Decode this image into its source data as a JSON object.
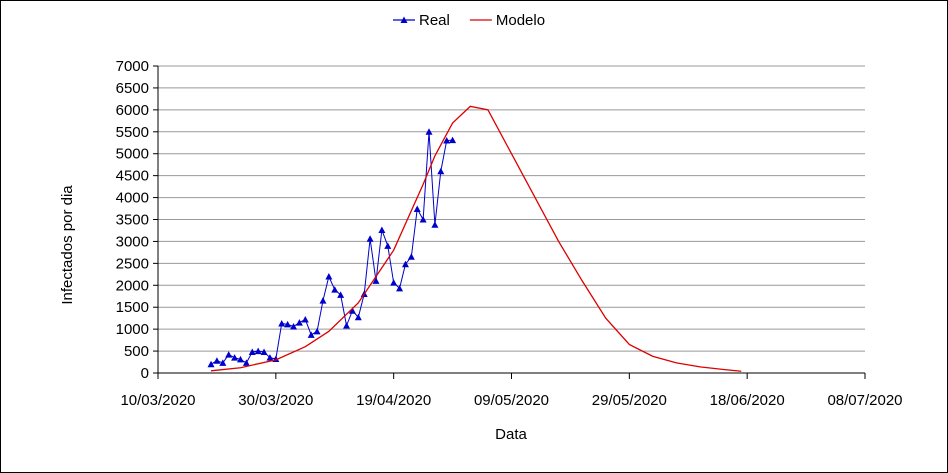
{
  "chart_data": {
    "type": "line",
    "xlabel": "Data",
    "ylabel": "Infectados por dia",
    "xlim": [
      "2020-03-10",
      "2020-07-08"
    ],
    "xticks": [
      {
        "value": "2020-03-10",
        "label": "10/03/2020"
      },
      {
        "value": "2020-03-30",
        "label": "30/03/2020"
      },
      {
        "value": "2020-04-19",
        "label": "19/04/2020"
      },
      {
        "value": "2020-05-09",
        "label": "09/05/2020"
      },
      {
        "value": "2020-05-29",
        "label": "29/05/2020"
      },
      {
        "value": "2020-06-18",
        "label": "18/06/2020"
      },
      {
        "value": "2020-07-08",
        "label": "08/07/2020"
      }
    ],
    "ylim": [
      0,
      7000
    ],
    "yticks": [
      0,
      500,
      1000,
      1500,
      2000,
      2500,
      3000,
      3500,
      4000,
      4500,
      5000,
      5500,
      6000,
      6500,
      7000
    ],
    "grid": true,
    "legend": "top",
    "series": [
      {
        "name": "Real",
        "color": "#0000cc",
        "marker": "triangle",
        "x": [
          "2020-03-19",
          "2020-03-20",
          "2020-03-21",
          "2020-03-22",
          "2020-03-23",
          "2020-03-24",
          "2020-03-25",
          "2020-03-26",
          "2020-03-27",
          "2020-03-28",
          "2020-03-29",
          "2020-03-30",
          "2020-03-31",
          "2020-04-01",
          "2020-04-02",
          "2020-04-03",
          "2020-04-04",
          "2020-04-05",
          "2020-04-06",
          "2020-04-07",
          "2020-04-08",
          "2020-04-09",
          "2020-04-10",
          "2020-04-11",
          "2020-04-12",
          "2020-04-13",
          "2020-04-14",
          "2020-04-15",
          "2020-04-16",
          "2020-04-17",
          "2020-04-18",
          "2020-04-19",
          "2020-04-20",
          "2020-04-21",
          "2020-04-22",
          "2020-04-23",
          "2020-04-24",
          "2020-04-25",
          "2020-04-26",
          "2020-04-27",
          "2020-04-28",
          "2020-04-29"
        ],
        "values": [
          200,
          280,
          230,
          420,
          350,
          310,
          230,
          480,
          500,
          480,
          350,
          320,
          1130,
          1110,
          1060,
          1150,
          1220,
          870,
          950,
          1650,
          2200,
          1900,
          1780,
          1080,
          1420,
          1270,
          1800,
          3060,
          2100,
          3260,
          2900,
          2060,
          1930,
          2480,
          2650,
          3740,
          3500,
          5500,
          3380,
          4600,
          5300,
          5310
        ]
      },
      {
        "name": "Modelo",
        "color": "#dd0000",
        "marker": "none",
        "x": [
          "2020-03-19",
          "2020-03-24",
          "2020-03-30",
          "2020-04-04",
          "2020-04-08",
          "2020-04-13",
          "2020-04-19",
          "2020-04-24",
          "2020-04-26",
          "2020-04-29",
          "2020-05-02",
          "2020-05-05",
          "2020-05-09",
          "2020-05-13",
          "2020-05-17",
          "2020-05-21",
          "2020-05-25",
          "2020-05-29",
          "2020-06-02",
          "2020-06-06",
          "2020-06-10",
          "2020-06-14",
          "2020-06-17"
        ],
        "values": [
          50,
          120,
          300,
          600,
          950,
          1600,
          2800,
          4300,
          4950,
          5700,
          6080,
          6000,
          5000,
          4000,
          3000,
          2100,
          1250,
          650,
          380,
          230,
          140,
          80,
          40
        ]
      }
    ]
  }
}
